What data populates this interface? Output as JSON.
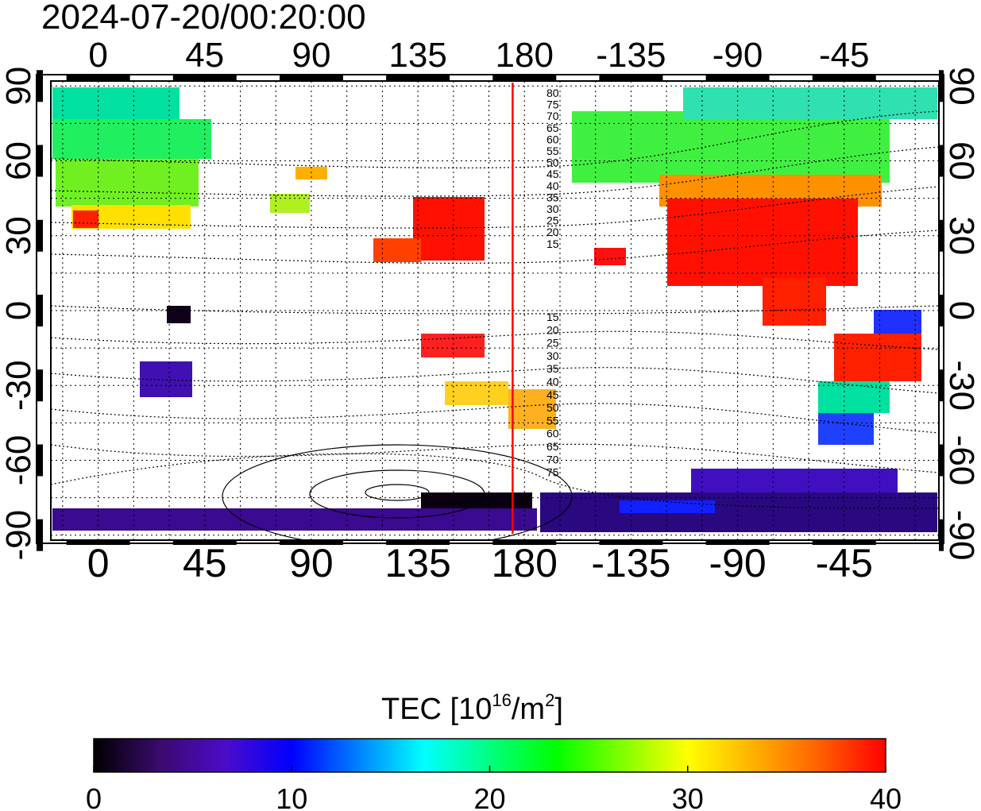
{
  "title": "2024-07-20/00:20:00",
  "map": {
    "lon_ticks": [
      "0",
      "45",
      "90",
      "135",
      "180",
      "-135",
      "-90",
      "-45"
    ],
    "lon_values": [
      0,
      45,
      90,
      135,
      180,
      225,
      270,
      315
    ],
    "lat_ticks": [
      "90",
      "60",
      "30",
      "0",
      "-30",
      "-60",
      "-90"
    ],
    "lat_values": [
      90,
      60,
      30,
      0,
      -30,
      -60,
      -90
    ],
    "lon_range": [
      -20,
      355
    ],
    "lat_range": [
      -92,
      92
    ],
    "grid": true,
    "grid_style": "dashed",
    "contour_labels_north": [
      "80",
      "75",
      "70",
      "65",
      "60",
      "55",
      "50",
      "45",
      "40",
      "35",
      "30",
      "25",
      "20",
      "15"
    ],
    "contour_labels_south": [
      "15",
      "20",
      "25",
      "30",
      "35",
      "40",
      "45",
      "50",
      "55",
      "60",
      "65",
      "70",
      "75"
    ],
    "marker_line_longitude": 175,
    "marker_line_color": "#ff0000"
  },
  "colorbar": {
    "label_prefix": "TEC  [10",
    "label_exponent": "16",
    "label_unit": "/m",
    "label_unit_exponent": "2",
    "label_suffix": "]",
    "ticks": [
      "0",
      "10",
      "20",
      "30",
      "40"
    ],
    "min": 0,
    "max": 40,
    "colors": [
      "#000000",
      "#3a0a6e",
      "#4b0cc8",
      "#0000ff",
      "#0080ff",
      "#00ffff",
      "#00ff80",
      "#00ff00",
      "#80ff00",
      "#ffff00",
      "#ffb000",
      "#ff6000",
      "#ff0000"
    ]
  }
}
